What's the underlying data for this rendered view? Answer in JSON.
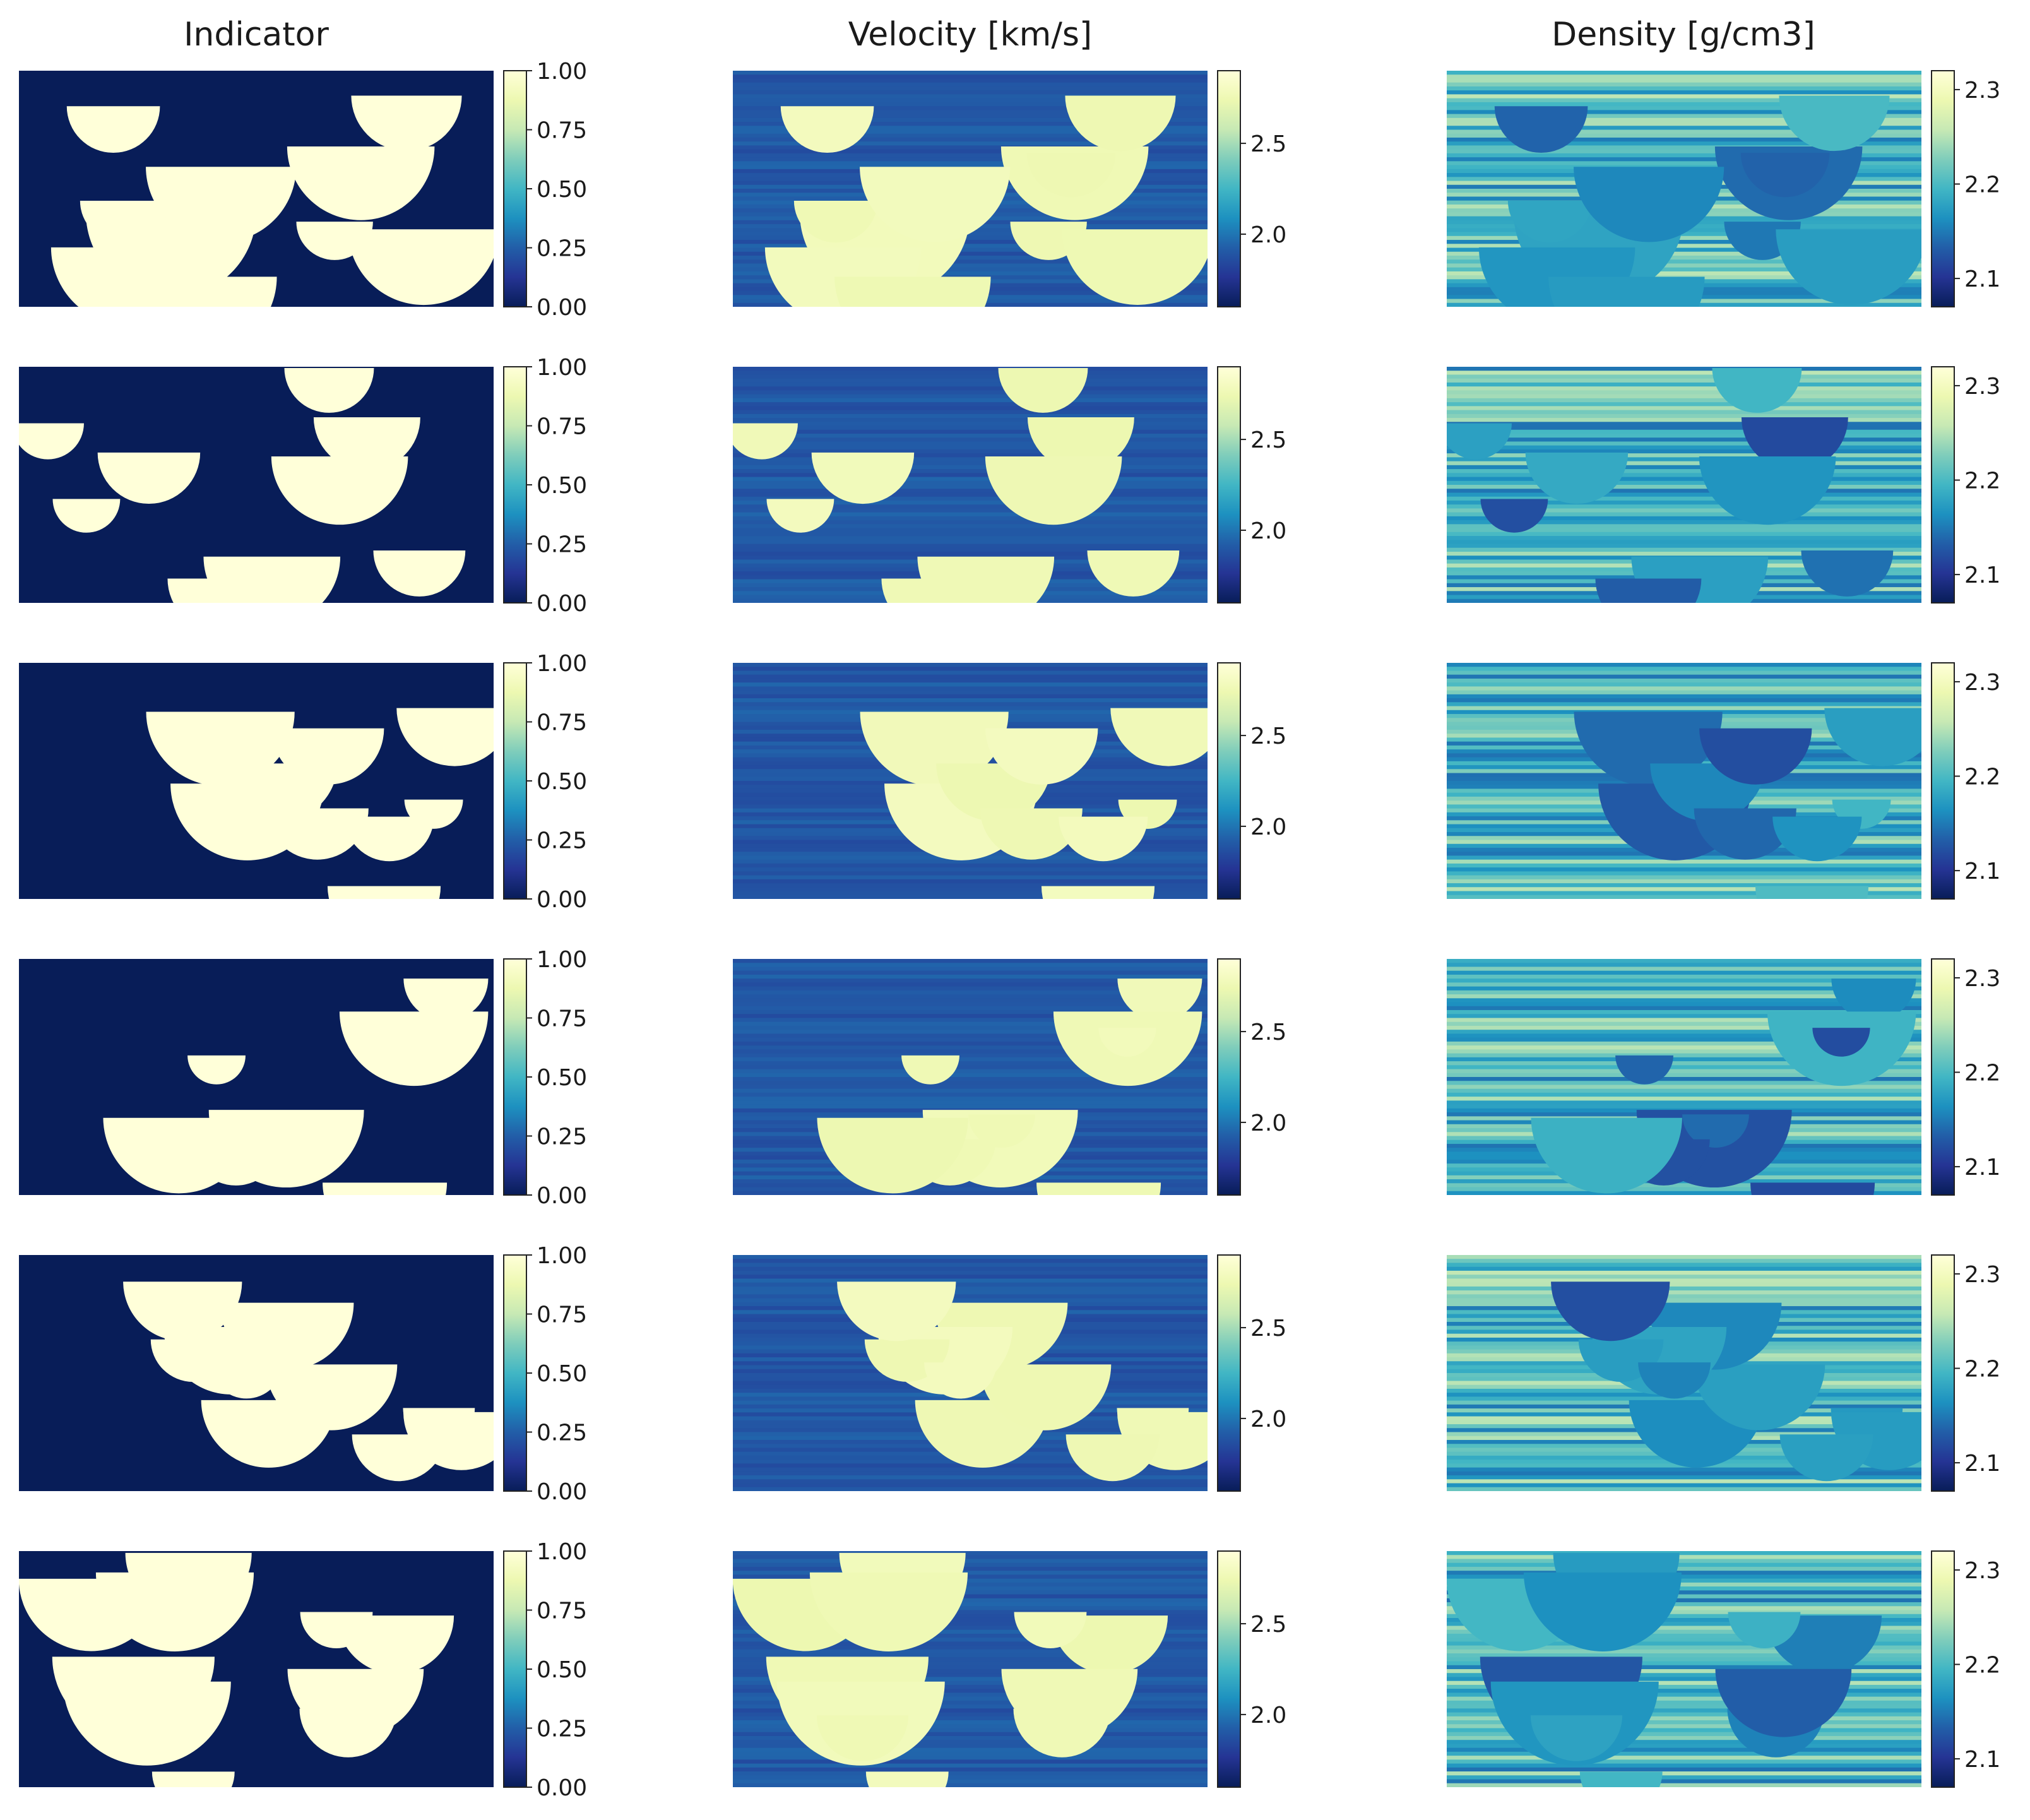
{
  "figure": {
    "columns": [
      "Indicator",
      "Velocity [km/s]",
      "Density [g/cm3]"
    ]
  },
  "colormap": {
    "name": "YlGnBu",
    "stops": [
      "#081d58",
      "#253494",
      "#225ea8",
      "#1d91c0",
      "#41b6c4",
      "#7fcdbb",
      "#c7e9b4",
      "#edf8b1",
      "#ffffd9"
    ]
  },
  "chart_data": [
    {
      "type": "heatmap",
      "title": "Indicator",
      "rows": 6,
      "colorbar": {
        "range": [
          0.0,
          1.0
        ],
        "ticks": [
          0.0,
          0.25,
          0.5,
          0.75,
          1.0
        ],
        "tick_labels": [
          "0.00",
          "0.25",
          "0.50",
          "0.75",
          "1.00"
        ]
      },
      "value_levels": {
        "background": 0.0,
        "body": 1.0
      }
    },
    {
      "type": "heatmap",
      "title": "Velocity [km/s]",
      "rows": 6,
      "colorbar": {
        "range": [
          1.6,
          2.9
        ],
        "ticks": [
          2.0,
          2.5
        ],
        "tick_labels": [
          "2.0",
          "2.5"
        ]
      },
      "value_levels": {
        "background": 1.9,
        "body": 2.8
      }
    },
    {
      "type": "heatmap",
      "title": "Density [g/cm3]",
      "rows": 6,
      "colorbar": {
        "range": [
          2.07,
          2.32
        ],
        "ticks": [
          2.1,
          2.2,
          2.3
        ],
        "tick_labels": [
          "2.1",
          "2.2",
          "2.3"
        ]
      },
      "value_levels": {
        "background": 2.2,
        "body": 2.16
      }
    }
  ]
}
